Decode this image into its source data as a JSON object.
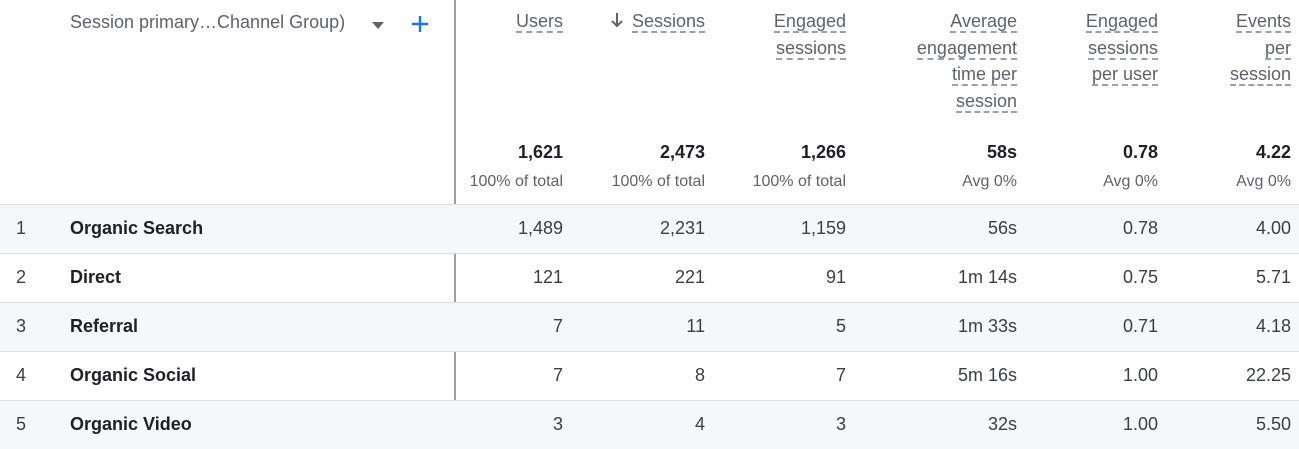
{
  "dimension": {
    "label": "Session primary…Channel Group)",
    "dropdown_icon": "chevron-down-icon",
    "add_icon": "plus-icon",
    "accent_color": "#1a73e8"
  },
  "columns": [
    {
      "key": "users",
      "lines": [
        "Users"
      ],
      "sorted": false
    },
    {
      "key": "sessions",
      "lines": [
        "Sessions"
      ],
      "sorted": true,
      "sort_direction": "descending",
      "sort_icon": "arrow-down-icon"
    },
    {
      "key": "engaged_sessions",
      "lines": [
        "Engaged",
        "sessions"
      ],
      "sorted": false
    },
    {
      "key": "avg_engagement_time",
      "lines": [
        "Average",
        "engagement",
        "time per",
        "session"
      ],
      "sorted": false
    },
    {
      "key": "engaged_sessions_per_user",
      "lines": [
        "Engaged",
        "sessions",
        "per user"
      ],
      "sorted": false
    },
    {
      "key": "events_per_session",
      "lines": [
        "Events",
        "per",
        "session"
      ],
      "sorted": false
    }
  ],
  "totals": [
    {
      "value": "1,621",
      "sub": "100% of total"
    },
    {
      "value": "2,473",
      "sub": "100% of total"
    },
    {
      "value": "1,266",
      "sub": "100% of total"
    },
    {
      "value": "58s",
      "sub": "Avg 0%"
    },
    {
      "value": "0.78",
      "sub": "Avg 0%"
    },
    {
      "value": "4.22",
      "sub": "Avg 0%"
    }
  ],
  "rows": [
    {
      "num": "1",
      "label": "Organic Search",
      "users": "1,489",
      "sessions": "2,231",
      "engaged": "1,159",
      "avg_eng": "56s",
      "espu": "0.78",
      "eps": "4.00"
    },
    {
      "num": "2",
      "label": "Direct",
      "users": "121",
      "sessions": "221",
      "engaged": "91",
      "avg_eng": "1m 14s",
      "espu": "0.75",
      "eps": "5.71"
    },
    {
      "num": "3",
      "label": "Referral",
      "users": "7",
      "sessions": "11",
      "engaged": "5",
      "avg_eng": "1m 33s",
      "espu": "0.71",
      "eps": "4.18"
    },
    {
      "num": "4",
      "label": "Organic Social",
      "users": "7",
      "sessions": "8",
      "engaged": "7",
      "avg_eng": "5m 16s",
      "espu": "1.00",
      "eps": "22.25"
    },
    {
      "num": "5",
      "label": "Organic Video",
      "users": "3",
      "sessions": "4",
      "engaged": "3",
      "avg_eng": "32s",
      "espu": "1.00",
      "eps": "5.50"
    }
  ]
}
